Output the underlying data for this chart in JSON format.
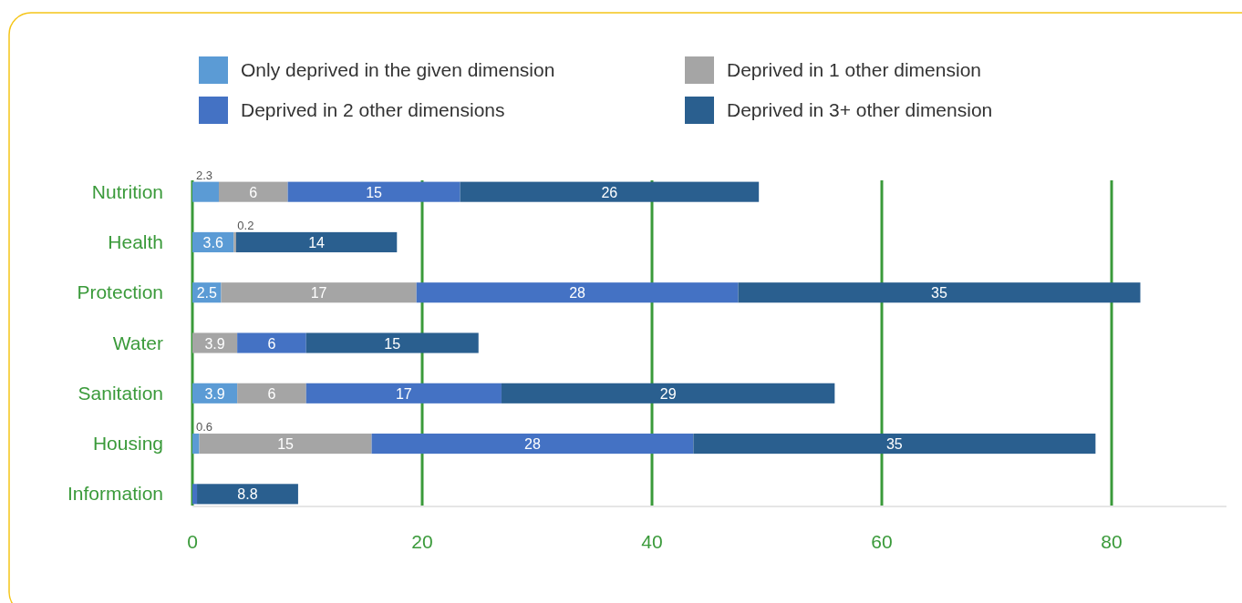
{
  "chart_data": {
    "type": "bar",
    "orientation": "horizontal",
    "stacked": true,
    "categories": [
      "Nutrition",
      "Health",
      "Protection",
      "Water",
      "Sanitation",
      "Housing",
      "Information"
    ],
    "series": [
      {
        "name": "Only deprived in the given dimension",
        "color": "#5b9bd5",
        "values": [
          2.3,
          3.6,
          2.5,
          null,
          3.9,
          0.6,
          null
        ],
        "value_labels": [
          "2.3",
          "3.6",
          "2.5",
          null,
          "3.9",
          "0.6",
          null
        ]
      },
      {
        "name": "Deprived in 1 other dimension",
        "color": "#a5a5a5",
        "values": [
          6,
          0.2,
          17,
          3.9,
          6,
          15,
          null
        ],
        "value_labels": [
          "6",
          "0.2",
          "17",
          "3.9",
          "6",
          "15",
          null
        ]
      },
      {
        "name": "Deprived in 2 other dimensions",
        "color": "#4472c4",
        "values": [
          15,
          null,
          28,
          6,
          17,
          28,
          0.4
        ],
        "value_labels": [
          "15",
          null,
          "28",
          "6",
          "17",
          "28",
          null
        ]
      },
      {
        "name": "Deprived in 3+ other dimension",
        "color": "#2a5f8f",
        "values": [
          26,
          14,
          35,
          15,
          29,
          35,
          8.8
        ],
        "value_labels": [
          "26",
          "14",
          "35",
          "15",
          "29",
          "35",
          "8.8"
        ]
      }
    ],
    "xlim": [
      0,
      90
    ],
    "xticks": [
      0,
      20,
      40,
      60,
      80
    ],
    "grid": "x",
    "legend": "top"
  }
}
